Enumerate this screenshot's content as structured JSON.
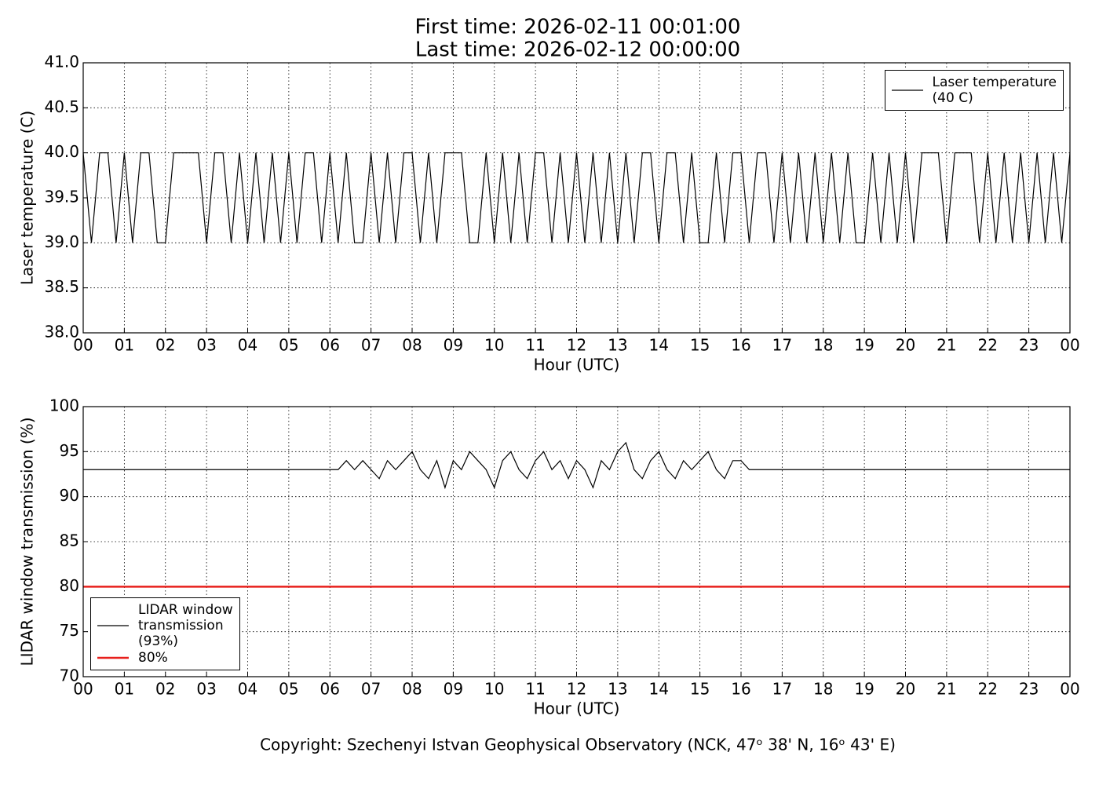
{
  "footer": "Copyright: Szechenyi Istvan Geophysical Observatory (NCK, 47ᵒ 38' N, 16ᵒ 43' E)",
  "chart_data": [
    {
      "type": "line",
      "title": "First time: 2026-02-11 00:01:00",
      "subtitle": "Last time: 2026-02-12 00:00:00",
      "xlabel": "Hour (UTC)",
      "ylabel": "Laser temperature (C)",
      "grid": true,
      "legend": "upper right",
      "xlim": [
        0,
        24
      ],
      "ylim": [
        38,
        41
      ],
      "xticks": [
        {
          "value": 0,
          "label": "00"
        },
        {
          "value": 1,
          "label": "01"
        },
        {
          "value": 2,
          "label": "02"
        },
        {
          "value": 3,
          "label": "03"
        },
        {
          "value": 4,
          "label": "04"
        },
        {
          "value": 5,
          "label": "05"
        },
        {
          "value": 6,
          "label": "06"
        },
        {
          "value": 7,
          "label": "07"
        },
        {
          "value": 8,
          "label": "08"
        },
        {
          "value": 9,
          "label": "09"
        },
        {
          "value": 10,
          "label": "10"
        },
        {
          "value": 11,
          "label": "11"
        },
        {
          "value": 12,
          "label": "12"
        },
        {
          "value": 13,
          "label": "13"
        },
        {
          "value": 14,
          "label": "14"
        },
        {
          "value": 15,
          "label": "15"
        },
        {
          "value": 16,
          "label": "16"
        },
        {
          "value": 17,
          "label": "17"
        },
        {
          "value": 18,
          "label": "18"
        },
        {
          "value": 19,
          "label": "19"
        },
        {
          "value": 20,
          "label": "20"
        },
        {
          "value": 21,
          "label": "21"
        },
        {
          "value": 22,
          "label": "22"
        },
        {
          "value": 23,
          "label": "23"
        },
        {
          "value": 24,
          "label": "00"
        }
      ],
      "yticks": [
        {
          "value": 38,
          "label": "38.0"
        },
        {
          "value": 38.5,
          "label": "38.5"
        },
        {
          "value": 39,
          "label": "39.0"
        },
        {
          "value": 39.5,
          "label": "39.5"
        },
        {
          "value": 40,
          "label": "40.0"
        },
        {
          "value": 40.5,
          "label": "40.5"
        },
        {
          "value": 41,
          "label": "41.0"
        }
      ],
      "x": [
        0,
        0.2,
        0.4,
        0.6,
        0.8,
        1,
        1.2,
        1.4,
        1.6,
        1.8,
        2,
        2.2,
        2.4,
        2.6,
        2.8,
        3,
        3.2,
        3.4,
        3.6,
        3.8,
        4,
        4.2,
        4.4,
        4.6,
        4.8,
        5,
        5.2,
        5.4,
        5.6,
        5.8,
        6,
        6.2,
        6.4,
        6.6,
        6.8,
        7,
        7.2,
        7.4,
        7.6,
        7.8,
        8,
        8.2,
        8.4,
        8.6,
        8.8,
        9,
        9.2,
        9.4,
        9.6,
        9.8,
        10,
        10.2,
        10.4,
        10.6,
        10.8,
        11,
        11.2,
        11.4,
        11.6,
        11.8,
        12,
        12.2,
        12.4,
        12.6,
        12.8,
        13,
        13.2,
        13.4,
        13.6,
        13.8,
        14,
        14.2,
        14.4,
        14.6,
        14.8,
        15,
        15.2,
        15.4,
        15.6,
        15.8,
        16,
        16.2,
        16.4,
        16.6,
        16.8,
        17,
        17.2,
        17.4,
        17.6,
        17.8,
        18,
        18.2,
        18.4,
        18.6,
        18.8,
        19,
        19.2,
        19.4,
        19.6,
        19.8,
        20,
        20.2,
        20.4,
        20.6,
        20.8,
        21,
        21.2,
        21.4,
        21.6,
        21.8,
        22,
        22.2,
        22.4,
        22.6,
        22.8,
        23,
        23.2,
        23.4,
        23.6,
        23.8,
        24
      ],
      "series": [
        {
          "name": "Laser temperature\n(40 C)",
          "color": "#000000",
          "values": [
            40,
            39,
            40,
            40,
            39,
            40,
            39,
            40,
            40,
            39,
            39,
            40,
            40,
            40,
            40,
            39,
            40,
            40,
            39,
            40,
            39,
            40,
            39,
            40,
            39,
            40,
            39,
            40,
            40,
            39,
            40,
            39,
            40,
            39,
            39,
            40,
            39,
            40,
            39,
            40,
            40,
            39,
            40,
            39,
            40,
            40,
            40,
            39,
            39,
            40,
            39,
            40,
            39,
            40,
            39,
            40,
            40,
            39,
            40,
            39,
            40,
            39,
            40,
            39,
            40,
            39,
            40,
            39,
            40,
            40,
            39,
            40,
            40,
            39,
            40,
            39,
            39,
            40,
            39,
            40,
            40,
            39,
            40,
            40,
            39,
            40,
            39,
            40,
            39,
            40,
            39,
            40,
            39,
            40,
            39,
            39,
            40,
            39,
            40,
            39,
            40,
            39,
            40,
            40,
            40,
            39,
            40,
            40,
            40,
            39,
            40,
            39,
            40,
            39,
            40,
            39,
            40,
            39,
            40,
            39,
            40
          ]
        }
      ]
    },
    {
      "type": "line",
      "xlabel": "Hour (UTC)",
      "ylabel": "LIDAR window transmission (%)",
      "grid": true,
      "legend": "lower left",
      "xlim": [
        0,
        24
      ],
      "ylim": [
        70,
        100
      ],
      "xticks": [
        {
          "value": 0,
          "label": "00"
        },
        {
          "value": 1,
          "label": "01"
        },
        {
          "value": 2,
          "label": "02"
        },
        {
          "value": 3,
          "label": "03"
        },
        {
          "value": 4,
          "label": "04"
        },
        {
          "value": 5,
          "label": "05"
        },
        {
          "value": 6,
          "label": "06"
        },
        {
          "value": 7,
          "label": "07"
        },
        {
          "value": 8,
          "label": "08"
        },
        {
          "value": 9,
          "label": "09"
        },
        {
          "value": 10,
          "label": "10"
        },
        {
          "value": 11,
          "label": "11"
        },
        {
          "value": 12,
          "label": "12"
        },
        {
          "value": 13,
          "label": "13"
        },
        {
          "value": 14,
          "label": "14"
        },
        {
          "value": 15,
          "label": "15"
        },
        {
          "value": 16,
          "label": "16"
        },
        {
          "value": 17,
          "label": "17"
        },
        {
          "value": 18,
          "label": "18"
        },
        {
          "value": 19,
          "label": "19"
        },
        {
          "value": 20,
          "label": "20"
        },
        {
          "value": 21,
          "label": "21"
        },
        {
          "value": 22,
          "label": "22"
        },
        {
          "value": 23,
          "label": "23"
        },
        {
          "value": 24,
          "label": "00"
        }
      ],
      "yticks": [
        70,
        75,
        80,
        85,
        90,
        95,
        100
      ],
      "x": [
        0,
        0.2,
        0.4,
        0.6,
        0.8,
        1,
        1.2,
        1.4,
        1.6,
        1.8,
        2,
        2.2,
        2.4,
        2.6,
        2.8,
        3,
        3.2,
        3.4,
        3.6,
        3.8,
        4,
        4.2,
        4.4,
        4.6,
        4.8,
        5,
        5.2,
        5.4,
        5.6,
        5.8,
        6,
        6.2,
        6.4,
        6.6,
        6.8,
        7,
        7.2,
        7.4,
        7.6,
        7.8,
        8,
        8.2,
        8.4,
        8.6,
        8.8,
        9,
        9.2,
        9.4,
        9.6,
        9.8,
        10,
        10.2,
        10.4,
        10.6,
        10.8,
        11,
        11.2,
        11.4,
        11.6,
        11.8,
        12,
        12.2,
        12.4,
        12.6,
        12.8,
        13,
        13.2,
        13.4,
        13.6,
        13.8,
        14,
        14.2,
        14.4,
        14.6,
        14.8,
        15,
        15.2,
        15.4,
        15.6,
        15.8,
        16,
        16.2,
        16.4,
        16.6,
        16.8,
        17,
        17.2,
        17.4,
        17.6,
        17.8,
        18,
        18.2,
        18.4,
        18.6,
        18.8,
        19,
        19.2,
        19.4,
        19.6,
        19.8,
        20,
        20.2,
        20.4,
        20.6,
        20.8,
        21,
        21.2,
        21.4,
        21.6,
        21.8,
        22,
        22.2,
        22.4,
        22.6,
        22.8,
        23,
        23.2,
        23.4,
        23.6,
        23.8,
        24
      ],
      "series": [
        {
          "name": "LIDAR window\ntransmission\n(93%)",
          "color": "#000000",
          "values": [
            93,
            93,
            93,
            93,
            93,
            93,
            93,
            93,
            93,
            93,
            93,
            93,
            93,
            93,
            93,
            93,
            93,
            93,
            93,
            93,
            93,
            93,
            93,
            93,
            93,
            93,
            93,
            93,
            93,
            93,
            93,
            93,
            94,
            93,
            94,
            93,
            92,
            94,
            93,
            94,
            95,
            93,
            92,
            94,
            91,
            94,
            93,
            95,
            94,
            93,
            91,
            94,
            95,
            93,
            92,
            94,
            95,
            93,
            94,
            92,
            94,
            93,
            91,
            94,
            93,
            95,
            96,
            93,
            92,
            94,
            95,
            93,
            92,
            94,
            93,
            94,
            95,
            93,
            92,
            94,
            94,
            93,
            93,
            93,
            93,
            93,
            93,
            93,
            93,
            93,
            93,
            93,
            93,
            93,
            93,
            93,
            93,
            93,
            93,
            93,
            93,
            93,
            93,
            93,
            93,
            93,
            93,
            93,
            93,
            93,
            93,
            93,
            93,
            93,
            93,
            93,
            93,
            93,
            93,
            93,
            93
          ]
        },
        {
          "name": "80%",
          "color": "#e8201c",
          "x": [
            0,
            24
          ],
          "values": [
            80,
            80
          ]
        }
      ]
    }
  ]
}
